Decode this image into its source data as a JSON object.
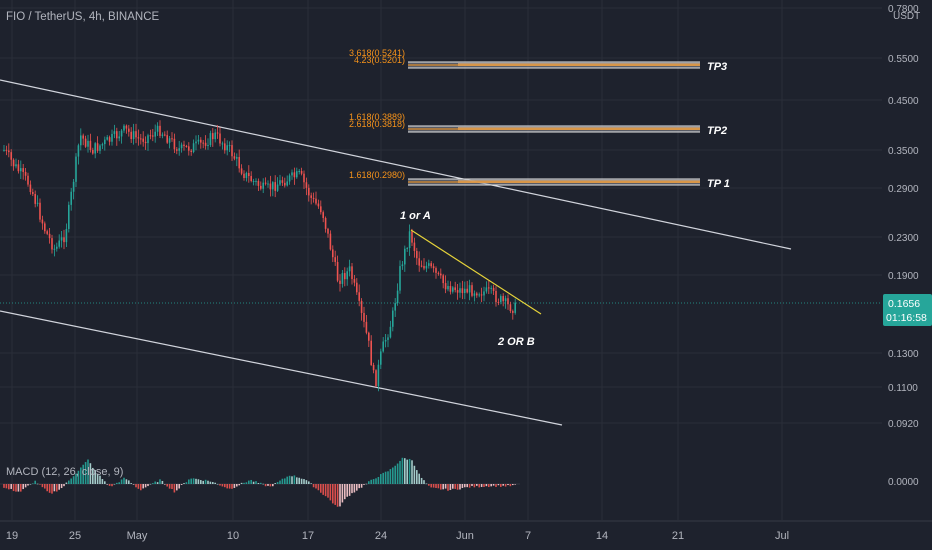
{
  "header": {
    "title": "FIO / TetherUS, 4h, BINANCE"
  },
  "macd": {
    "title": "MACD (12, 26, close, 9)"
  },
  "colors": {
    "background": "#1e222d",
    "text": "#b2b5be",
    "up": "#26a69a",
    "down": "#ef5350",
    "trend": "#d1d4dc",
    "wedge": "#e6d33a",
    "fib_label": "#f7931a",
    "price_badge": "#26a69a"
  },
  "chart_data": {
    "type": "candlestick",
    "symbol": "FIO / TetherUS",
    "interval": "4h",
    "exchange": "BINANCE",
    "y_axis": {
      "unit": "USDT",
      "scale": "log",
      "tick_labels": [
        "0.7800",
        "0.5500",
        "0.4500",
        "0.3500",
        "0.2900",
        "0.2300",
        "0.1900",
        "0.1300",
        "0.1100",
        "0.0920"
      ]
    },
    "x_axis": {
      "tick_labels": [
        "19",
        "25",
        "May",
        "10",
        "17",
        "24",
        "Jun",
        "7",
        "14",
        "21",
        "Jul"
      ]
    },
    "current_price": {
      "price": "0.1656",
      "countdown": "01:16:58"
    },
    "fib_levels": [
      {
        "name": "TP3",
        "labels": [
          "3.618(0.5241)",
          "4.23(0.5201)"
        ]
      },
      {
        "name": "TP2",
        "labels": [
          "1.618(0.3889)",
          "2.618(0.3818)"
        ]
      },
      {
        "name": "TP 1",
        "labels": [
          "1.618(0.2980)"
        ]
      }
    ],
    "annotations": [
      "1 or A",
      "2 OR B"
    ],
    "macd_axis_label": "0.0000"
  }
}
